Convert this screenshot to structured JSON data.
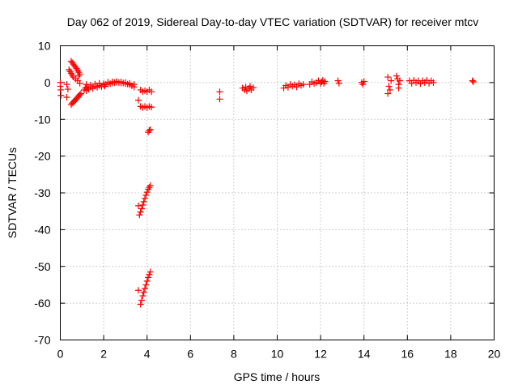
{
  "chart_data": {
    "type": "scatter",
    "title": "Day 062 of 2019, Sidereal Day-to-day VTEC variation (SDTVAR) for receiver mtcv",
    "xlabel": "GPS time / hours",
    "ylabel": "SDTVAR / TECUs",
    "xlim": [
      0,
      20
    ],
    "ylim": [
      -70,
      10
    ],
    "xticks": [
      "0",
      "2",
      "4",
      "6",
      "8",
      "10",
      "12",
      "14",
      "16",
      "18",
      "20"
    ],
    "yticks": [
      "10",
      "0",
      "-10",
      "-20",
      "-30",
      "-40",
      "-50",
      "-60",
      "-70"
    ],
    "grid": true,
    "marker": "plus",
    "color": "#ff0000",
    "series": [
      {
        "name": "SDTVAR",
        "points": [
          [
            0.0,
            0.0
          ],
          [
            0.0,
            -1.0
          ],
          [
            0.02,
            -2.0
          ],
          [
            0.03,
            -3.5
          ],
          [
            0.3,
            -0.5
          ],
          [
            0.35,
            -1.8
          ],
          [
            0.3,
            -4.0
          ],
          [
            0.4,
            3.5
          ],
          [
            0.45,
            3.0
          ],
          [
            0.5,
            2.5
          ],
          [
            0.55,
            2.0
          ],
          [
            0.6,
            1.5
          ],
          [
            0.7,
            1.0
          ],
          [
            0.8,
            0.5
          ],
          [
            0.9,
            -0.2
          ],
          [
            0.5,
            5.8
          ],
          [
            0.55,
            5.4
          ],
          [
            0.6,
            5.0
          ],
          [
            0.65,
            4.6
          ],
          [
            0.7,
            4.2
          ],
          [
            0.75,
            3.8
          ],
          [
            0.8,
            3.3
          ],
          [
            0.85,
            2.8
          ],
          [
            0.9,
            2.3
          ],
          [
            0.85,
            1.8
          ],
          [
            0.5,
            -6.0
          ],
          [
            0.55,
            -5.6
          ],
          [
            0.6,
            -5.3
          ],
          [
            0.65,
            -5.0
          ],
          [
            0.7,
            -4.7
          ],
          [
            0.75,
            -4.4
          ],
          [
            0.8,
            -4.0
          ],
          [
            0.85,
            -3.6
          ],
          [
            0.9,
            -3.3
          ],
          [
            0.95,
            -3.0
          ],
          [
            1.1,
            -2.0
          ],
          [
            1.15,
            -1.5
          ],
          [
            1.2,
            -2.2
          ],
          [
            1.25,
            -1.3
          ],
          [
            1.3,
            -1.8
          ],
          [
            1.4,
            -1.2
          ],
          [
            1.5,
            -1.6
          ],
          [
            1.6,
            -1.0
          ],
          [
            1.7,
            -1.3
          ],
          [
            1.8,
            -0.8
          ],
          [
            1.9,
            -1.1
          ],
          [
            2.0,
            -0.6
          ],
          [
            2.05,
            -1.0
          ],
          [
            2.1,
            -0.5
          ],
          [
            2.2,
            -0.4
          ],
          [
            2.3,
            -0.3
          ],
          [
            2.4,
            -0.1
          ],
          [
            2.5,
            0.0
          ],
          [
            2.6,
            0.1
          ],
          [
            2.7,
            0.0
          ],
          [
            2.8,
            -0.1
          ],
          [
            2.9,
            -0.1
          ],
          [
            3.0,
            -0.3
          ],
          [
            3.1,
            -0.4
          ],
          [
            3.2,
            -0.6
          ],
          [
            3.3,
            -0.9
          ],
          [
            3.4,
            -1.2
          ],
          [
            1.2,
            -0.5
          ],
          [
            1.4,
            -0.7
          ],
          [
            1.6,
            -0.4
          ],
          [
            1.8,
            -0.2
          ],
          [
            2.0,
            -0.3
          ],
          [
            2.2,
            0.1
          ],
          [
            2.4,
            0.2
          ],
          [
            2.6,
            0.3
          ],
          [
            2.8,
            0.2
          ],
          [
            3.0,
            0.0
          ],
          [
            3.2,
            -0.2
          ],
          [
            3.4,
            -0.5
          ],
          [
            3.7,
            -2.0
          ],
          [
            3.8,
            -2.5
          ],
          [
            3.9,
            -2.2
          ],
          [
            4.0,
            -2.5
          ],
          [
            4.1,
            -2.0
          ],
          [
            4.2,
            -2.5
          ],
          [
            3.6,
            -4.8
          ],
          [
            3.7,
            -6.5
          ],
          [
            3.8,
            -6.8
          ],
          [
            3.9,
            -6.5
          ],
          [
            4.0,
            -6.8
          ],
          [
            4.1,
            -6.5
          ],
          [
            4.2,
            -6.7
          ],
          [
            4.05,
            -13.5
          ],
          [
            4.1,
            -13.0
          ],
          [
            4.15,
            -12.8
          ],
          [
            3.6,
            -33.5
          ],
          [
            3.65,
            -36.0
          ],
          [
            3.7,
            -35.2
          ],
          [
            3.75,
            -34.3
          ],
          [
            3.8,
            -33.3
          ],
          [
            3.85,
            -32.4
          ],
          [
            3.9,
            -31.5
          ],
          [
            3.95,
            -30.6
          ],
          [
            4.0,
            -29.8
          ],
          [
            4.05,
            -29.0
          ],
          [
            4.1,
            -28.5
          ],
          [
            4.15,
            -28.0
          ],
          [
            3.6,
            -56.5
          ],
          [
            3.7,
            -60.3
          ],
          [
            3.75,
            -59.2
          ],
          [
            3.8,
            -58.0
          ],
          [
            3.85,
            -57.0
          ],
          [
            3.9,
            -56.0
          ],
          [
            3.95,
            -55.0
          ],
          [
            4.0,
            -54.0
          ],
          [
            4.05,
            -53.0
          ],
          [
            4.1,
            -52.2
          ],
          [
            4.15,
            -51.5
          ],
          [
            7.35,
            -2.5
          ],
          [
            7.35,
            -4.5
          ],
          [
            8.4,
            -1.5
          ],
          [
            8.5,
            -2.0
          ],
          [
            8.55,
            -1.2
          ],
          [
            8.6,
            -2.3
          ],
          [
            8.7,
            -1.6
          ],
          [
            8.75,
            -1.0
          ],
          [
            8.8,
            -2.0
          ],
          [
            8.9,
            -1.4
          ],
          [
            10.3,
            -1.5
          ],
          [
            10.4,
            -0.8
          ],
          [
            10.5,
            -1.3
          ],
          [
            10.6,
            -0.5
          ],
          [
            10.7,
            -1.0
          ],
          [
            10.8,
            -0.6
          ],
          [
            10.9,
            -1.2
          ],
          [
            11.0,
            -0.3
          ],
          [
            11.1,
            -0.8
          ],
          [
            11.2,
            -0.5
          ],
          [
            11.5,
            -0.5
          ],
          [
            11.6,
            0.2
          ],
          [
            11.7,
            -0.3
          ],
          [
            11.8,
            0.0
          ],
          [
            11.9,
            0.5
          ],
          [
            12.0,
            -0.3
          ],
          [
            12.05,
            0.2
          ],
          [
            12.1,
            0.6
          ],
          [
            12.15,
            -0.2
          ],
          [
            12.2,
            0.3
          ],
          [
            12.8,
            0.5
          ],
          [
            12.85,
            -0.2
          ],
          [
            13.9,
            0.0
          ],
          [
            13.95,
            -0.5
          ],
          [
            14.0,
            0.3
          ],
          [
            15.1,
            1.5
          ],
          [
            15.15,
            -1.0
          ],
          [
            15.2,
            -2.0
          ],
          [
            15.25,
            0.5
          ],
          [
            15.1,
            -3.0
          ],
          [
            15.5,
            1.8
          ],
          [
            15.55,
            1.0
          ],
          [
            15.6,
            -0.5
          ],
          [
            15.65,
            0.5
          ],
          [
            15.6,
            -1.5
          ],
          [
            16.1,
            0.5
          ],
          [
            16.2,
            -0.2
          ],
          [
            16.3,
            0.6
          ],
          [
            16.4,
            0.0
          ],
          [
            16.5,
            0.5
          ],
          [
            16.6,
            -0.3
          ],
          [
            16.7,
            0.5
          ],
          [
            16.8,
            0.0
          ],
          [
            16.9,
            0.6
          ],
          [
            17.0,
            -0.2
          ],
          [
            17.1,
            0.5
          ],
          [
            17.2,
            0.0
          ],
          [
            19.0,
            0.5
          ],
          [
            19.05,
            0.2
          ]
        ]
      }
    ]
  }
}
